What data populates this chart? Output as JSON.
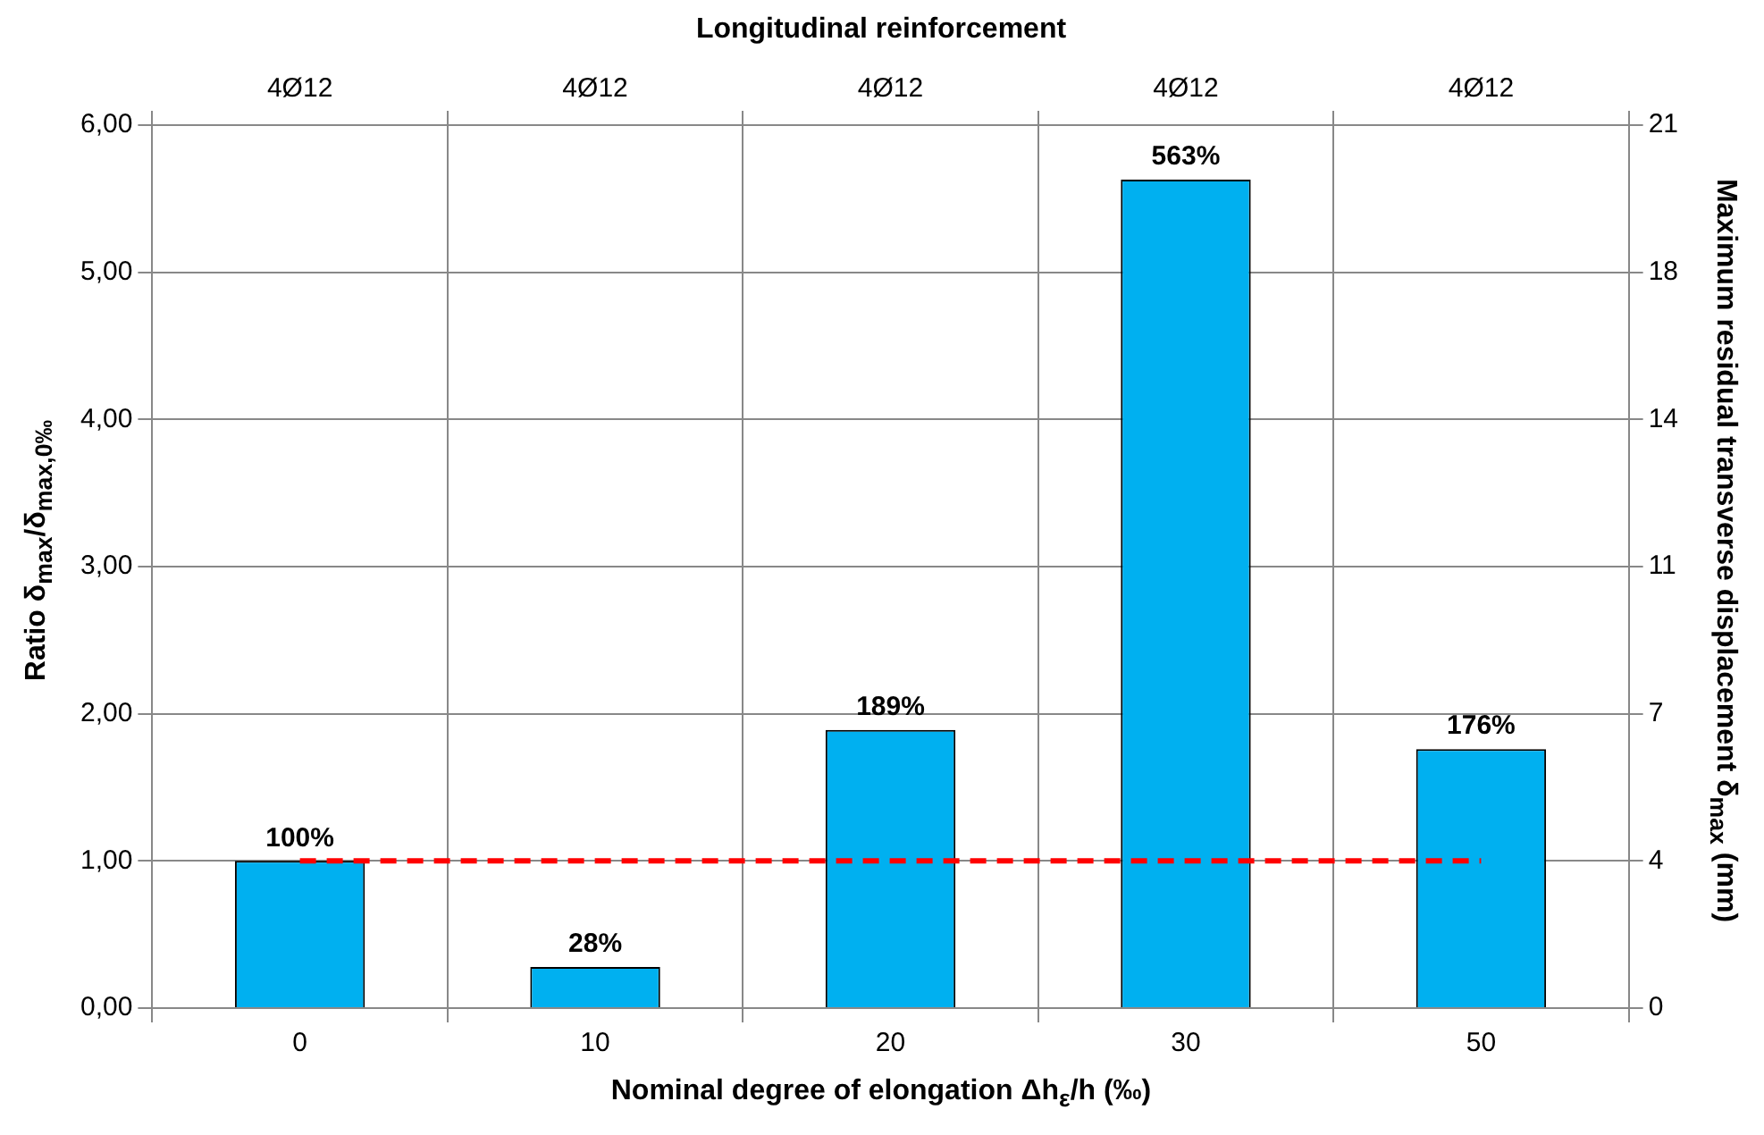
{
  "chart_data": {
    "type": "bar",
    "xlabel": "Nominal degree of elongation Δh$_{ε}$/h (‰)",
    "ylabel": "Ratio δ$_{max}$/δ$_{max,0‰}$",
    "y2label": "Maximum residual transverse displacement δ$_{max}$ (mm)",
    "x2label": "Longitudinal reinforcement",
    "categories": [
      "0",
      "10",
      "20",
      "30",
      "50"
    ],
    "values": [
      1.0,
      0.28,
      1.89,
      5.63,
      1.76
    ],
    "color": "#00b0f0",
    "value_labels": [
      "100%",
      "28%",
      "189%",
      "563%",
      "176%"
    ],
    "ylim": [
      0,
      6
    ],
    "yticks": [
      {
        "value": 0,
        "label": "0,00"
      },
      {
        "value": 1,
        "label": "1,00"
      },
      {
        "value": 2,
        "label": "2,00"
      },
      {
        "value": 3,
        "label": "3,00"
      },
      {
        "value": 4,
        "label": "4,00"
      },
      {
        "value": 5,
        "label": "5,00"
      },
      {
        "value": 6,
        "label": "6,00"
      }
    ],
    "y2lim": [
      0,
      21
    ],
    "y2ticks": [
      0,
      {
        "value": 3.5,
        "label": "4"
      },
      7,
      {
        "value": 10.5,
        "label": "11"
      },
      14,
      {
        "value": 17.5,
        "label": "18"
      },
      21
    ],
    "annotations": [
      "4Ø12",
      "4Ø12",
      "4Ø12",
      "4Ø12",
      "4Ø12"
    ],
    "ref_lines": [
      {
        "axis": "y",
        "value": 1,
        "color": "#ff0000",
        "line_style": "dashed"
      }
    ],
    "grid": true,
    "legend": false
  }
}
